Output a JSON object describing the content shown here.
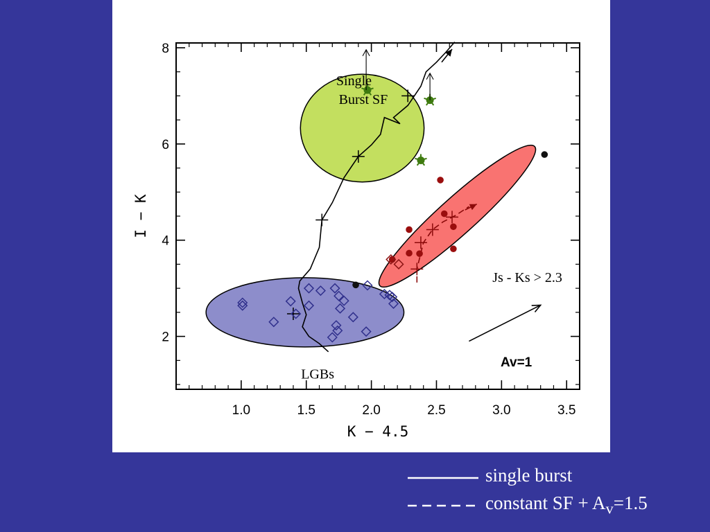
{
  "chart_data": {
    "type": "scatter",
    "title": "",
    "xlabel": "K − 4.5",
    "ylabel": "I − K",
    "xlim": [
      0.5,
      3.6
    ],
    "ylim": [
      0.9,
      8.1
    ],
    "xticks": [
      {
        "value": 1.0,
        "label": "1.0"
      },
      {
        "value": 1.5,
        "label": "1.5"
      },
      {
        "value": 2.0,
        "label": "2.0"
      },
      {
        "value": 2.5,
        "label": "2.5"
      },
      {
        "value": 3.0,
        "label": "3.0"
      },
      {
        "value": 3.5,
        "label": "3.5"
      }
    ],
    "yticks": [
      {
        "value": 2,
        "label": "2"
      },
      {
        "value": 4,
        "label": "4"
      },
      {
        "value": 6,
        "label": "6"
      },
      {
        "value": 8,
        "label": "8"
      }
    ],
    "regions": [
      {
        "label": "Single\nBurst SF",
        "color": "#c3df5f",
        "cx": 1.93,
        "cy": 6.33,
        "rx": 0.475,
        "ry": 1.12,
        "angle": 0
      },
      {
        "label": "Js - Ks > 2.3",
        "color": "#f97371",
        "cx": 2.66,
        "cy": 4.5,
        "rx": 0.8,
        "ry": 0.38,
        "angle": -42
      },
      {
        "label": "LGBs",
        "color": "#8d8dcb",
        "cx": 1.49,
        "cy": 2.5,
        "rx": 0.76,
        "ry": 0.72,
        "angle": 0
      }
    ],
    "series": [
      {
        "name": "",
        "marker": "diamond",
        "color": "#30308c",
        "points": [
          [
            1.01,
            2.7
          ],
          [
            1.01,
            2.64
          ],
          [
            1.25,
            2.3
          ],
          [
            1.38,
            2.73
          ],
          [
            1.42,
            2.47
          ],
          [
            1.52,
            2.64
          ],
          [
            1.52,
            3.0
          ],
          [
            1.61,
            2.95
          ],
          [
            1.72,
            3.0
          ],
          [
            1.75,
            2.84
          ],
          [
            1.76,
            2.58
          ],
          [
            1.79,
            2.74
          ],
          [
            1.73,
            2.23
          ],
          [
            1.74,
            2.12
          ],
          [
            1.7,
            1.98
          ],
          [
            1.86,
            2.4
          ],
          [
            1.96,
            2.1
          ],
          [
            1.97,
            3.06
          ],
          [
            2.1,
            2.88
          ],
          [
            2.14,
            2.86
          ],
          [
            2.16,
            2.82
          ],
          [
            2.17,
            2.68
          ]
        ]
      },
      {
        "name": "",
        "marker": "circle",
        "color": "#9a0e0e",
        "points": [
          [
            2.16,
            3.6
          ],
          [
            2.29,
            4.22
          ],
          [
            2.29,
            3.73
          ],
          [
            2.37,
            3.72
          ],
          [
            2.53,
            5.25
          ],
          [
            2.56,
            4.55
          ],
          [
            2.63,
            4.28
          ],
          [
            2.63,
            3.82
          ]
        ]
      },
      {
        "name": "",
        "marker": "circle",
        "color": "#111111",
        "points": [
          [
            1.88,
            3.07
          ],
          [
            3.33,
            5.78
          ]
        ]
      },
      {
        "name": "",
        "marker": "diamond",
        "color": "#8c1414",
        "points": [
          [
            2.15,
            3.6
          ],
          [
            2.21,
            3.5
          ]
        ]
      },
      {
        "name": "",
        "marker": "star",
        "color": "#3f7b10",
        "points": [
          [
            1.97,
            7.12
          ],
          [
            2.45,
            6.91
          ],
          [
            2.38,
            5.66
          ]
        ]
      }
    ],
    "tracks": [
      {
        "name": "single burst",
        "style": "solid",
        "color": "#000000",
        "points": [
          [
            1.67,
            1.68
          ],
          [
            1.6,
            1.85
          ],
          [
            1.52,
            2.0
          ],
          [
            1.47,
            2.2
          ],
          [
            1.5,
            2.45
          ],
          [
            1.47,
            2.7
          ],
          [
            1.44,
            3.0
          ],
          [
            1.45,
            3.15
          ],
          [
            1.53,
            3.4
          ],
          [
            1.6,
            3.85
          ],
          [
            1.62,
            4.42
          ],
          [
            1.7,
            4.78
          ],
          [
            1.79,
            5.3
          ],
          [
            1.9,
            5.74
          ],
          [
            2.0,
            5.98
          ],
          [
            2.07,
            6.2
          ],
          [
            2.1,
            6.55
          ],
          [
            2.22,
            6.42
          ],
          [
            2.17,
            6.55
          ],
          [
            2.28,
            6.8
          ],
          [
            2.33,
            7.0
          ],
          [
            2.38,
            7.2
          ],
          [
            2.42,
            7.5
          ],
          [
            2.5,
            7.7
          ],
          [
            2.57,
            7.9
          ],
          [
            2.64,
            8.12
          ]
        ],
        "markers": [
          [
            1.4,
            2.47
          ],
          [
            1.62,
            4.42
          ],
          [
            1.9,
            5.74
          ],
          [
            2.28,
            7.0
          ]
        ],
        "arrow": [
          [
            2.54,
            7.7
          ],
          [
            2.62,
            7.97
          ]
        ]
      },
      {
        "name": "constant SF + Av=1.5",
        "style": "dashed",
        "color": "#8c0a0a",
        "points": [
          [
            2.35,
            3.12
          ],
          [
            2.35,
            3.4
          ],
          [
            2.4,
            3.95
          ],
          [
            2.47,
            4.22
          ],
          [
            2.55,
            4.38
          ],
          [
            2.65,
            4.52
          ],
          [
            2.75,
            4.7
          ]
        ],
        "markers": [
          [
            2.35,
            3.4
          ],
          [
            2.38,
            3.95
          ],
          [
            2.47,
            4.22
          ],
          [
            2.62,
            4.48
          ]
        ],
        "arrow": [
          [
            2.72,
            4.63
          ],
          [
            2.81,
            4.75
          ]
        ]
      }
    ],
    "upper_limits": [
      [
        1.96,
        7.12,
        7.96
      ],
      [
        2.45,
        6.91,
        7.47
      ]
    ],
    "reddening_vector": {
      "label": "Av=1",
      "from": [
        2.75,
        1.9
      ],
      "to": [
        3.3,
        2.65
      ]
    },
    "annotations": [
      {
        "text": "Single",
        "x": 1.73,
        "y": 7.22
      },
      {
        "text": "Burst SF",
        "x": 1.75,
        "y": 6.83
      },
      {
        "text": "Js - Ks > 2.3",
        "x": 2.93,
        "y": 3.13
      },
      {
        "text": "LGBs",
        "x": 1.46,
        "y": 1.12
      }
    ]
  },
  "legend": {
    "items": [
      {
        "style": "solid",
        "label_html": "single burst"
      },
      {
        "style": "dashed",
        "label_html": "constant SF + A<sub>v</sub>=1.5"
      }
    ]
  }
}
